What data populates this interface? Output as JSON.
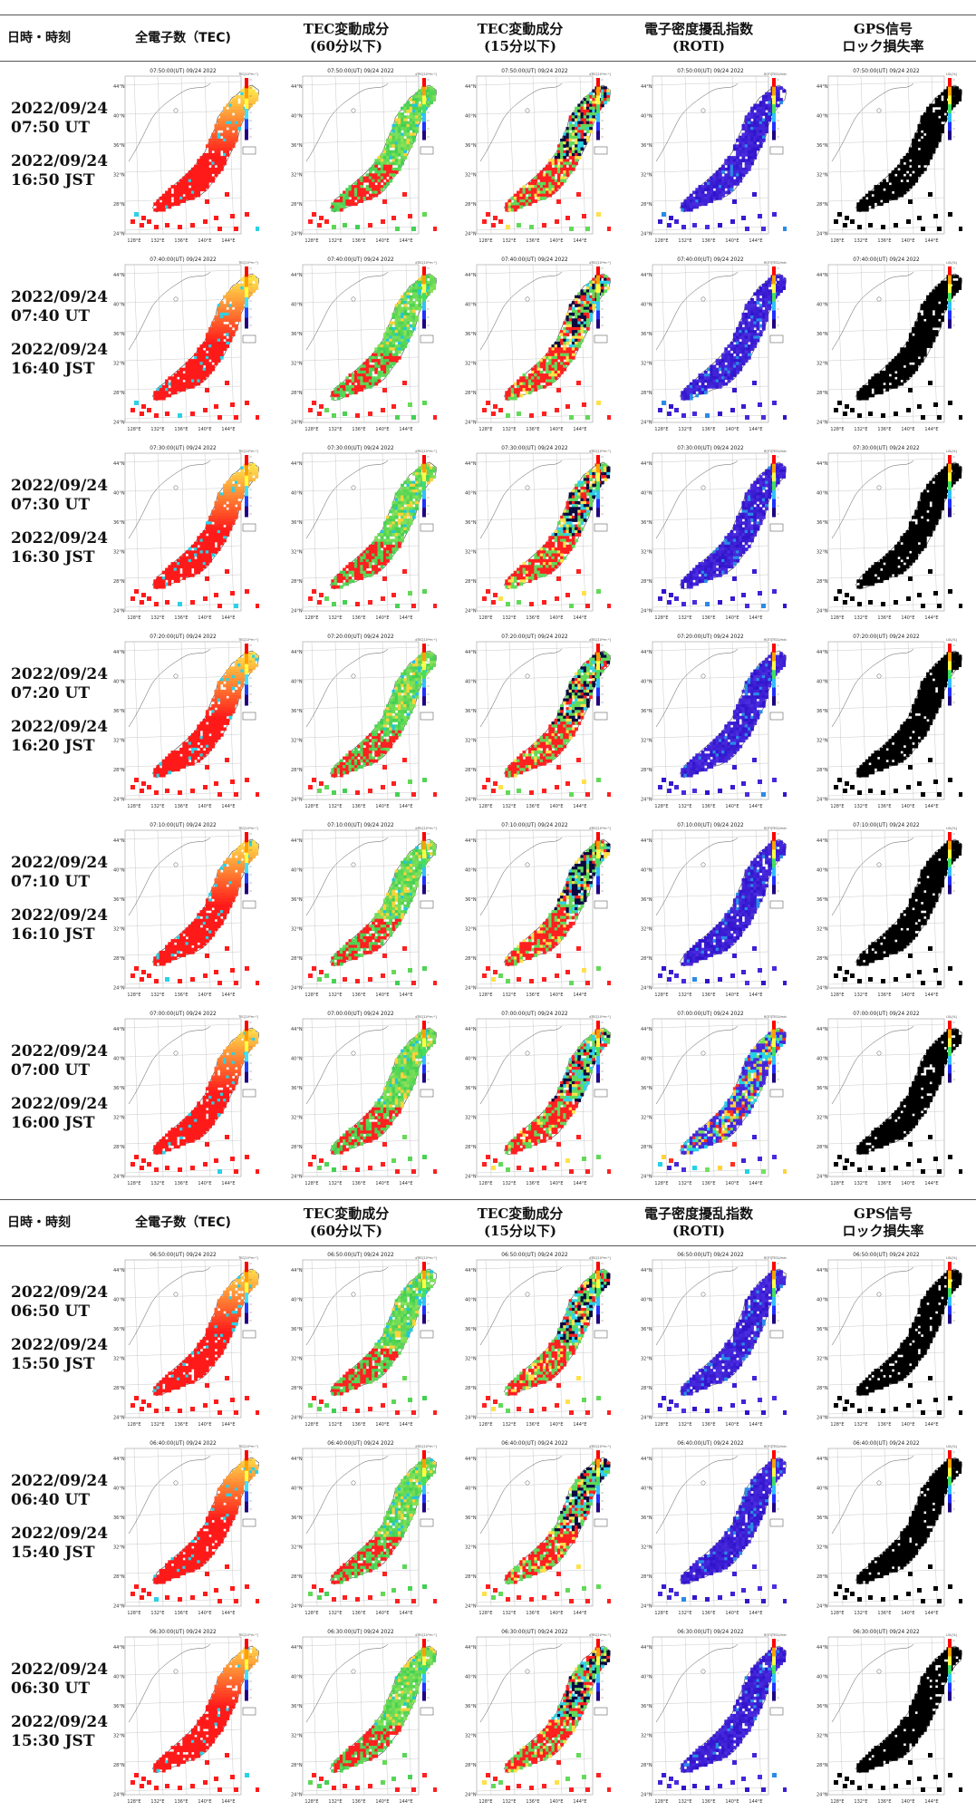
{
  "headers": [
    {
      "text": "日時・時刻"
    },
    {
      "text": "全電子数（TEC)"
    },
    {
      "text": "TEC変動成分\n(60分以下)"
    },
    {
      "text": "TEC変動成分\n(15分以下)"
    },
    {
      "text": "電子密度擾乱指数\n(ROTI)"
    },
    {
      "text": "GPS信号\nロック損失率"
    }
  ],
  "rows": [
    {
      "ut": "2022/09/24\n07:50 UT",
      "jst": "2022/09/24\n16:50 JST",
      "map_title": "07:50:00(UT) 09/24 2022"
    },
    {
      "ut": "2022/09/24\n07:40 UT",
      "jst": "2022/09/24\n16:40 JST",
      "map_title": "07:40:00(UT) 09/24 2022"
    },
    {
      "ut": "2022/09/24\n07:30 UT",
      "jst": "2022/09/24\n16:30 JST",
      "map_title": "07:30:00(UT) 09/24 2022"
    },
    {
      "ut": "2022/09/24\n07:20 UT",
      "jst": "2022/09/24\n16:20 JST",
      "map_title": "07:20:00(UT) 09/24 2022"
    },
    {
      "ut": "2022/09/24\n07:10 UT",
      "jst": "2022/09/24\n16:10 JST",
      "map_title": "07:10:00(UT) 09/24 2022"
    },
    {
      "ut": "2022/09/24\n07:00 UT",
      "jst": "2022/09/24\n16:00 JST",
      "map_title": "07:00:00(UT) 09/24 2022"
    },
    {
      "ut": "2022/09/24\n06:50 UT",
      "jst": "2022/09/24\n15:50 JST",
      "map_title": "06:50:00(UT) 09/24 2022"
    },
    {
      "ut": "2022/09/24\n06:40 UT",
      "jst": "2022/09/24\n15:40 JST",
      "map_title": "06:40:00(UT) 09/24 2022"
    },
    {
      "ut": "2022/09/24\n06:30 UT",
      "jst": "2022/09/24\n15:30 JST",
      "map_title": "06:30:00(UT) 09/24 2022"
    }
  ],
  "map": {
    "lat_labels": [
      "44°N",
      "40°N",
      "36°N",
      "32°N",
      "28°N",
      "24°N"
    ],
    "lon_labels": [
      "128°E",
      "132°E",
      "136°E",
      "140°E",
      "144°E"
    ],
    "panel_units": [
      "TEC[10¹⁶m⁻²]",
      "dTEC[10¹⁶m⁻²]",
      "dTEC[10¹⁶m⁻²]",
      "ROTI[TECU/min]",
      "LOL[%]"
    ],
    "panel_styles": [
      "tec",
      "dtec60",
      "dtec15",
      "roti",
      "lol"
    ]
  },
  "colors": {
    "tec_low": "#ffe14a",
    "tec_high": "#ff1a1a",
    "dtec_green": "#7fe05a",
    "roti_blue": "#3a1ccf",
    "lol_black": "#000000"
  }
}
